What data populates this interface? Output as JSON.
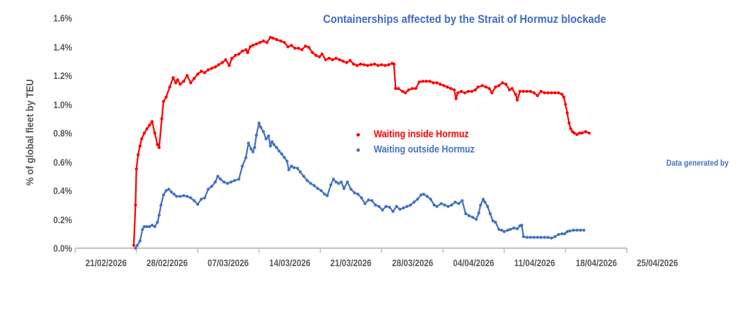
{
  "watermark": "Data generated by",
  "colors": {
    "series_inside": "#FF0000",
    "series_outside": "#4472C4",
    "title_text": "#3E6CC7",
    "axis_text": "#595959",
    "axis_line": "#BFBFBF"
  },
  "chart_data": {
    "type": "line",
    "title": "Containerships affected by the Strait of Hormuz blockade",
    "xlabel": "",
    "ylabel": "% of global fleet by TEU",
    "ylim": [
      0,
      1.6
    ],
    "y_tick_step": 0.2,
    "y_tick_labels": [
      "0.0%",
      "0.2%",
      "0.4%",
      "0.6%",
      "0.8%",
      "1.0%",
      "1.2%",
      "1.4%",
      "1.6%"
    ],
    "x_tick_labels": [
      "21/02/2026",
      "28/02/2026",
      "07/03/2026",
      "14/03/2026",
      "21/03/2026",
      "28/03/2026",
      "04/04/2026",
      "11/04/2026",
      "18/04/2026",
      "25/04/2026"
    ],
    "x_unit": "days since 21/02/2026, weekly ticks, labels centered between ticks",
    "grid": false,
    "legend_position": "inside plot, center-right",
    "series": [
      {
        "name": "Waiting inside Hormuz",
        "color": "#FF0000",
        "points": [
          [
            6.2,
            0.02
          ],
          [
            6.4,
            0.3
          ],
          [
            6.5,
            0.55
          ],
          [
            6.7,
            0.65
          ],
          [
            6.9,
            0.71
          ],
          [
            7.1,
            0.76
          ],
          [
            7.4,
            0.8
          ],
          [
            7.7,
            0.83
          ],
          [
            8.0,
            0.855
          ],
          [
            8.3,
            0.88
          ],
          [
            8.6,
            0.8
          ],
          [
            8.9,
            0.72
          ],
          [
            9.1,
            0.7
          ],
          [
            9.4,
            0.9
          ],
          [
            9.6,
            1.02
          ],
          [
            9.9,
            1.05
          ],
          [
            10.3,
            1.12
          ],
          [
            10.7,
            1.185
          ],
          [
            11.0,
            1.15
          ],
          [
            11.2,
            1.17
          ],
          [
            11.5,
            1.14
          ],
          [
            11.9,
            1.16
          ],
          [
            12.3,
            1.2
          ],
          [
            12.7,
            1.15
          ],
          [
            13.1,
            1.18
          ],
          [
            13.5,
            1.21
          ],
          [
            13.9,
            1.23
          ],
          [
            14.3,
            1.22
          ],
          [
            14.7,
            1.24
          ],
          [
            15.1,
            1.25
          ],
          [
            15.5,
            1.26
          ],
          [
            15.9,
            1.275
          ],
          [
            16.3,
            1.29
          ],
          [
            16.7,
            1.31
          ],
          [
            17.1,
            1.27
          ],
          [
            17.4,
            1.32
          ],
          [
            17.8,
            1.34
          ],
          [
            18.2,
            1.35
          ],
          [
            18.6,
            1.37
          ],
          [
            19.0,
            1.38
          ],
          [
            19.2,
            1.36
          ],
          [
            19.5,
            1.4
          ],
          [
            19.8,
            1.41
          ],
          [
            20.2,
            1.42
          ],
          [
            20.6,
            1.43
          ],
          [
            21.0,
            1.44
          ],
          [
            21.4,
            1.43
          ],
          [
            21.8,
            1.465
          ],
          [
            22.1,
            1.46
          ],
          [
            22.5,
            1.45
          ],
          [
            23.0,
            1.44
          ],
          [
            23.4,
            1.43
          ],
          [
            23.8,
            1.4
          ],
          [
            24.2,
            1.41
          ],
          [
            24.6,
            1.39
          ],
          [
            25.0,
            1.39
          ],
          [
            25.4,
            1.38
          ],
          [
            25.8,
            1.405
          ],
          [
            26.2,
            1.395
          ],
          [
            26.6,
            1.36
          ],
          [
            27.0,
            1.34
          ],
          [
            27.4,
            1.33
          ],
          [
            27.7,
            1.35
          ],
          [
            28.1,
            1.31
          ],
          [
            28.5,
            1.32
          ],
          [
            28.9,
            1.31
          ],
          [
            29.3,
            1.32
          ],
          [
            29.7,
            1.31
          ],
          [
            30.1,
            1.3
          ],
          [
            30.5,
            1.29
          ],
          [
            30.9,
            1.305
          ],
          [
            31.3,
            1.28
          ],
          [
            31.7,
            1.27
          ],
          [
            32.1,
            1.28
          ],
          [
            32.5,
            1.275
          ],
          [
            32.9,
            1.27
          ],
          [
            33.3,
            1.275
          ],
          [
            33.7,
            1.28
          ],
          [
            34.1,
            1.27
          ],
          [
            34.5,
            1.275
          ],
          [
            34.9,
            1.27
          ],
          [
            35.3,
            1.275
          ],
          [
            35.7,
            1.285
          ],
          [
            35.9,
            1.28
          ],
          [
            36.1,
            1.11
          ],
          [
            36.4,
            1.11
          ],
          [
            36.9,
            1.09
          ],
          [
            37.2,
            1.08
          ],
          [
            37.6,
            1.1
          ],
          [
            38.0,
            1.11
          ],
          [
            38.4,
            1.11
          ],
          [
            38.8,
            1.155
          ],
          [
            39.2,
            1.16
          ],
          [
            39.6,
            1.16
          ],
          [
            40.0,
            1.16
          ],
          [
            40.4,
            1.15
          ],
          [
            40.8,
            1.15
          ],
          [
            41.2,
            1.14
          ],
          [
            41.6,
            1.13
          ],
          [
            42.0,
            1.12
          ],
          [
            42.4,
            1.11
          ],
          [
            42.8,
            1.1
          ],
          [
            43.0,
            1.04
          ],
          [
            43.2,
            1.08
          ],
          [
            43.6,
            1.09
          ],
          [
            44.0,
            1.08
          ],
          [
            44.4,
            1.09
          ],
          [
            44.8,
            1.09
          ],
          [
            45.2,
            1.1
          ],
          [
            45.5,
            1.12
          ],
          [
            46.0,
            1.13
          ],
          [
            46.4,
            1.12
          ],
          [
            46.8,
            1.11
          ],
          [
            47.1,
            1.08
          ],
          [
            47.5,
            1.12
          ],
          [
            47.9,
            1.13
          ],
          [
            48.3,
            1.15
          ],
          [
            48.7,
            1.14
          ],
          [
            49.1,
            1.1
          ],
          [
            49.4,
            1.11
          ],
          [
            49.8,
            1.07
          ],
          [
            50.0,
            1.03
          ],
          [
            50.3,
            1.09
          ],
          [
            50.7,
            1.09
          ],
          [
            51.1,
            1.09
          ],
          [
            51.5,
            1.09
          ],
          [
            51.9,
            1.08
          ],
          [
            52.3,
            1.06
          ],
          [
            52.7,
            1.09
          ],
          [
            53.1,
            1.08
          ],
          [
            53.5,
            1.08
          ],
          [
            53.9,
            1.08
          ],
          [
            54.3,
            1.08
          ],
          [
            54.7,
            1.08
          ],
          [
            55.1,
            1.07
          ],
          [
            55.3,
            1.05
          ],
          [
            55.5,
            1.0
          ],
          [
            55.7,
            0.94
          ],
          [
            55.9,
            0.87
          ],
          [
            56.1,
            0.83
          ],
          [
            56.3,
            0.81
          ],
          [
            56.5,
            0.8
          ],
          [
            56.8,
            0.79
          ],
          [
            57.1,
            0.8
          ],
          [
            57.4,
            0.8
          ],
          [
            57.8,
            0.81
          ],
          [
            58.2,
            0.8
          ]
        ]
      },
      {
        "name": "Waiting outside Hormuz",
        "color": "#4472C4",
        "points": [
          [
            6.4,
            0.0
          ],
          [
            6.6,
            0.02
          ],
          [
            6.9,
            0.05
          ],
          [
            7.2,
            0.13
          ],
          [
            7.4,
            0.15
          ],
          [
            7.7,
            0.15
          ],
          [
            8.0,
            0.15
          ],
          [
            8.3,
            0.16
          ],
          [
            8.6,
            0.15
          ],
          [
            8.9,
            0.18
          ],
          [
            9.1,
            0.23
          ],
          [
            9.3,
            0.3
          ],
          [
            9.6,
            0.37
          ],
          [
            9.9,
            0.4
          ],
          [
            10.2,
            0.41
          ],
          [
            10.5,
            0.39
          ],
          [
            10.8,
            0.375
          ],
          [
            11.1,
            0.36
          ],
          [
            11.5,
            0.36
          ],
          [
            11.9,
            0.365
          ],
          [
            12.3,
            0.36
          ],
          [
            12.7,
            0.35
          ],
          [
            13.1,
            0.33
          ],
          [
            13.5,
            0.305
          ],
          [
            13.9,
            0.34
          ],
          [
            14.3,
            0.35
          ],
          [
            14.7,
            0.41
          ],
          [
            15.1,
            0.43
          ],
          [
            15.5,
            0.46
          ],
          [
            15.8,
            0.5
          ],
          [
            16.1,
            0.48
          ],
          [
            16.5,
            0.46
          ],
          [
            16.9,
            0.45
          ],
          [
            17.3,
            0.46
          ],
          [
            17.7,
            0.47
          ],
          [
            18.2,
            0.48
          ],
          [
            18.6,
            0.57
          ],
          [
            19.0,
            0.63
          ],
          [
            19.3,
            0.73
          ],
          [
            19.6,
            0.69
          ],
          [
            19.8,
            0.67
          ],
          [
            20.0,
            0.7
          ],
          [
            20.2,
            0.785
          ],
          [
            20.5,
            0.87
          ],
          [
            20.7,
            0.84
          ],
          [
            21.0,
            0.81
          ],
          [
            21.3,
            0.76
          ],
          [
            21.6,
            0.78
          ],
          [
            21.8,
            0.71
          ],
          [
            22.0,
            0.74
          ],
          [
            22.2,
            0.72
          ],
          [
            22.5,
            0.7
          ],
          [
            22.8,
            0.675
          ],
          [
            23.1,
            0.655
          ],
          [
            23.4,
            0.63
          ],
          [
            23.7,
            0.605
          ],
          [
            23.9,
            0.545
          ],
          [
            24.2,
            0.57
          ],
          [
            24.5,
            0.56
          ],
          [
            24.9,
            0.555
          ],
          [
            25.2,
            0.53
          ],
          [
            25.6,
            0.5
          ],
          [
            26.0,
            0.47
          ],
          [
            26.4,
            0.45
          ],
          [
            26.8,
            0.435
          ],
          [
            27.2,
            0.415
          ],
          [
            27.6,
            0.4
          ],
          [
            28.0,
            0.375
          ],
          [
            28.3,
            0.365
          ],
          [
            28.7,
            0.44
          ],
          [
            29.0,
            0.48
          ],
          [
            29.3,
            0.46
          ],
          [
            29.6,
            0.45
          ],
          [
            29.9,
            0.46
          ],
          [
            30.2,
            0.415
          ],
          [
            30.6,
            0.46
          ],
          [
            31.0,
            0.41
          ],
          [
            31.4,
            0.385
          ],
          [
            31.8,
            0.375
          ],
          [
            32.2,
            0.35
          ],
          [
            32.6,
            0.31
          ],
          [
            33.0,
            0.335
          ],
          [
            33.4,
            0.33
          ],
          [
            33.8,
            0.3
          ],
          [
            34.2,
            0.29
          ],
          [
            34.6,
            0.265
          ],
          [
            35.0,
            0.29
          ],
          [
            35.4,
            0.285
          ],
          [
            35.8,
            0.255
          ],
          [
            36.2,
            0.29
          ],
          [
            36.6,
            0.27
          ],
          [
            37.0,
            0.28
          ],
          [
            37.4,
            0.29
          ],
          [
            37.8,
            0.3
          ],
          [
            38.2,
            0.32
          ],
          [
            38.6,
            0.34
          ],
          [
            39.0,
            0.37
          ],
          [
            39.3,
            0.375
          ],
          [
            39.7,
            0.36
          ],
          [
            40.1,
            0.34
          ],
          [
            40.5,
            0.3
          ],
          [
            40.8,
            0.29
          ],
          [
            41.3,
            0.31
          ],
          [
            41.7,
            0.3
          ],
          [
            42.1,
            0.29
          ],
          [
            42.5,
            0.3
          ],
          [
            42.9,
            0.32
          ],
          [
            43.3,
            0.31
          ],
          [
            43.7,
            0.33
          ],
          [
            44.1,
            0.24
          ],
          [
            44.5,
            0.225
          ],
          [
            44.9,
            0.215
          ],
          [
            45.3,
            0.2
          ],
          [
            45.6,
            0.245
          ],
          [
            45.8,
            0.3
          ],
          [
            46.1,
            0.34
          ],
          [
            46.3,
            0.32
          ],
          [
            46.6,
            0.29
          ],
          [
            46.9,
            0.24
          ],
          [
            47.2,
            0.19
          ],
          [
            47.5,
            0.18
          ],
          [
            47.9,
            0.13
          ],
          [
            48.2,
            0.125
          ],
          [
            48.5,
            0.115
          ],
          [
            48.9,
            0.125
          ],
          [
            49.2,
            0.13
          ],
          [
            49.6,
            0.14
          ],
          [
            50.0,
            0.135
          ],
          [
            50.3,
            0.155
          ],
          [
            50.5,
            0.16
          ],
          [
            50.7,
            0.08
          ],
          [
            51.1,
            0.075
          ],
          [
            51.5,
            0.075
          ],
          [
            51.9,
            0.075
          ],
          [
            52.3,
            0.075
          ],
          [
            52.7,
            0.075
          ],
          [
            53.1,
            0.075
          ],
          [
            53.5,
            0.075
          ],
          [
            53.9,
            0.07
          ],
          [
            54.3,
            0.08
          ],
          [
            54.7,
            0.095
          ],
          [
            55.1,
            0.1
          ],
          [
            55.4,
            0.1
          ],
          [
            55.7,
            0.115
          ],
          [
            56.0,
            0.12
          ],
          [
            56.4,
            0.125
          ],
          [
            56.8,
            0.125
          ],
          [
            57.2,
            0.125
          ],
          [
            57.6,
            0.125
          ]
        ]
      }
    ]
  }
}
